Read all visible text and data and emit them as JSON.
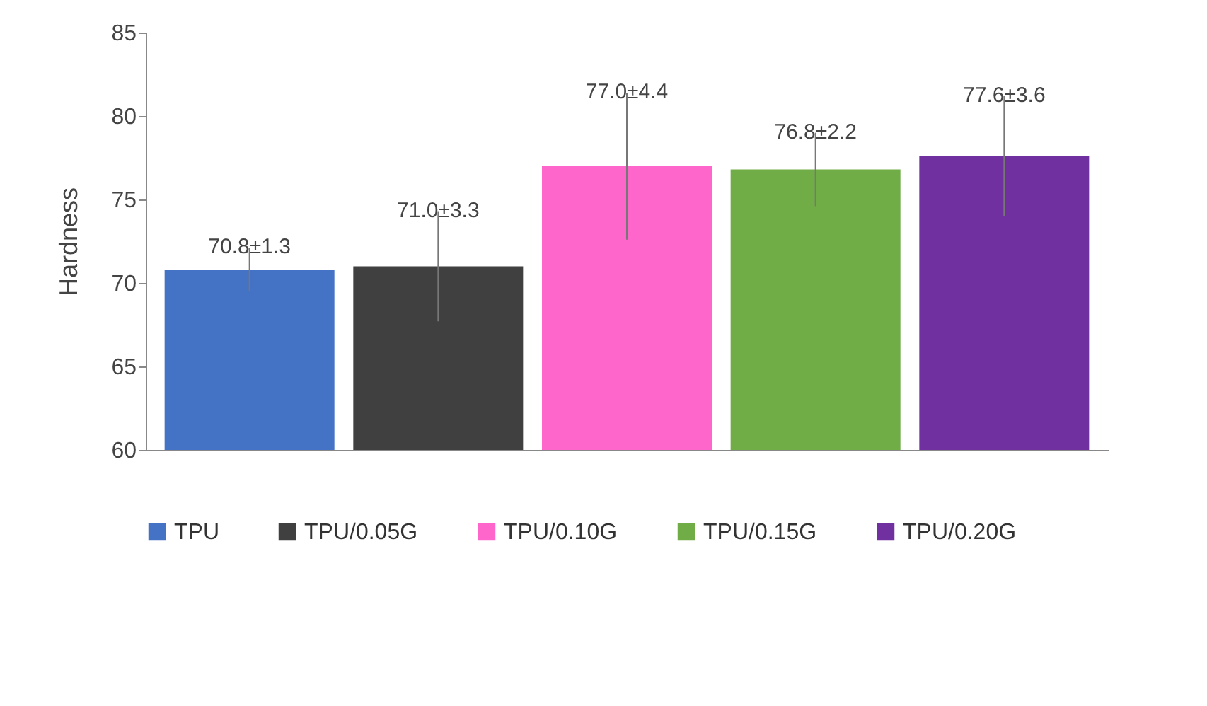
{
  "chart_data": {
    "type": "bar",
    "ylabel": "Hardness",
    "categories": [
      null
    ],
    "series": [
      {
        "name": "TPU",
        "color": "#4472c4",
        "values": [
          70.8
        ],
        "errors": [
          1.3
        ],
        "value_labels": [
          "70.8±1.3"
        ]
      },
      {
        "name": "TPU/0.05G",
        "color": "#404040",
        "values": [
          71.0
        ],
        "errors": [
          3.3
        ],
        "value_labels": [
          "71.0±3.3"
        ]
      },
      {
        "name": "TPU/0.10G",
        "color": "#ff66cc",
        "values": [
          77.0
        ],
        "errors": [
          4.4
        ],
        "value_labels": [
          "77.0±4.4"
        ]
      },
      {
        "name": "TPU/0.15G",
        "color": "#70ad47",
        "values": [
          76.8
        ],
        "errors": [
          2.2
        ],
        "value_labels": [
          "76.8±2.2"
        ]
      },
      {
        "name": "TPU/0.20G",
        "color": "#7030a0",
        "values": [
          77.6
        ],
        "errors": [
          3.6
        ],
        "value_labels": [
          "77.6±3.6"
        ]
      }
    ],
    "ylim": [
      60,
      85
    ],
    "yticks": [
      60,
      65,
      70,
      75,
      80,
      85
    ],
    "legend": "bottom",
    "grid": false
  }
}
